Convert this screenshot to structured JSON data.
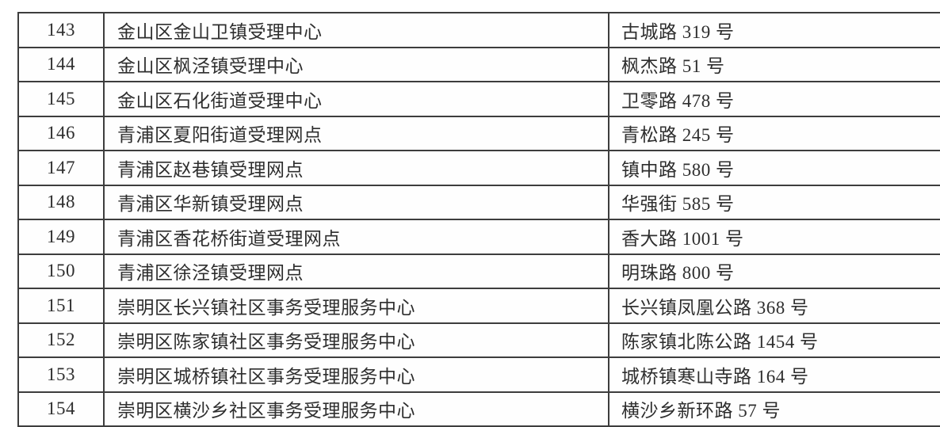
{
  "table": {
    "rows": [
      {
        "no": "143",
        "name": "金山区金山卫镇受理中心",
        "address": "古城路 319 号"
      },
      {
        "no": "144",
        "name": "金山区枫泾镇受理中心",
        "address": "枫杰路 51 号"
      },
      {
        "no": "145",
        "name": "金山区石化街道受理中心",
        "address": "卫零路 478 号"
      },
      {
        "no": "146",
        "name": "青浦区夏阳街道受理网点",
        "address": "青松路 245 号"
      },
      {
        "no": "147",
        "name": "青浦区赵巷镇受理网点",
        "address": "镇中路 580 号"
      },
      {
        "no": "148",
        "name": "青浦区华新镇受理网点",
        "address": "华强街 585 号"
      },
      {
        "no": "149",
        "name": "青浦区香花桥街道受理网点",
        "address": "香大路 1001 号"
      },
      {
        "no": "150",
        "name": "青浦区徐泾镇受理网点",
        "address": "明珠路 800 号"
      },
      {
        "no": "151",
        "name": "崇明区长兴镇社区事务受理服务中心",
        "address": "长兴镇凤凰公路 368 号"
      },
      {
        "no": "152",
        "name": "崇明区陈家镇社区事务受理服务中心",
        "address": "陈家镇北陈公路 1454 号"
      },
      {
        "no": "153",
        "name": "崇明区城桥镇社区事务受理服务中心",
        "address": "城桥镇寒山寺路 164 号"
      },
      {
        "no": "154",
        "name": "崇明区横沙乡社区事务受理服务中心",
        "address": "横沙乡新环路 57 号"
      }
    ]
  }
}
